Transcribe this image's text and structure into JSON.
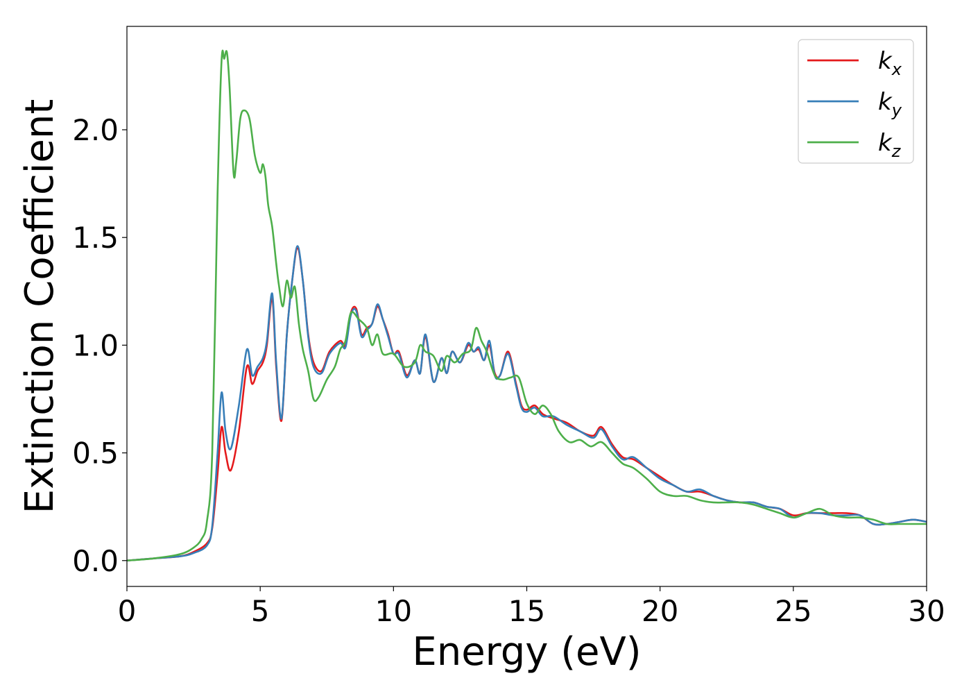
{
  "chart_data": {
    "type": "line",
    "title": "",
    "xlabel": "Energy (eV)",
    "ylabel": "Extinction Coefficient",
    "xlim": [
      0,
      30
    ],
    "ylim": [
      -0.12,
      2.48
    ],
    "xticks": [
      0,
      5,
      10,
      15,
      20,
      25,
      30
    ],
    "xtick_labels": [
      "0",
      "5",
      "10",
      "15",
      "20",
      "25",
      "30"
    ],
    "yticks": [
      0.0,
      0.5,
      1.0,
      1.5,
      2.0
    ],
    "ytick_labels": [
      "0.0",
      "0.5",
      "1.0",
      "1.5",
      "2.0"
    ],
    "grid": false,
    "legend_position": "top-right",
    "series": [
      {
        "name": "kx",
        "label_base": "k",
        "label_sub": "x",
        "color": "#e41a1c",
        "x": [
          0,
          1,
          2,
          2.5,
          3,
          3.2,
          3.4,
          3.55,
          3.7,
          3.9,
          4.2,
          4.5,
          4.7,
          4.9,
          5.1,
          5.25,
          5.45,
          5.6,
          5.8,
          6.0,
          6.2,
          6.4,
          6.6,
          6.8,
          7.0,
          7.3,
          7.6,
          8.0,
          8.2,
          8.4,
          8.6,
          8.8,
          9.0,
          9.2,
          9.4,
          9.6,
          9.8,
          10.0,
          10.2,
          10.5,
          10.8,
          11.0,
          11.2,
          11.5,
          11.8,
          12.0,
          12.2,
          12.5,
          12.8,
          13.0,
          13.2,
          13.4,
          13.6,
          13.8,
          14.0,
          14.3,
          14.6,
          14.8,
          15.0,
          15.3,
          15.6,
          16.0,
          16.5,
          17.0,
          17.5,
          17.8,
          18.2,
          18.6,
          19.0,
          19.5,
          20.0,
          20.5,
          21.0,
          21.5,
          22.0,
          22.5,
          23.0,
          23.5,
          24.0,
          24.5,
          25.0,
          25.5,
          26.0,
          26.5,
          27.0,
          27.5,
          28.0,
          28.5,
          29.0,
          29.5,
          30.0
        ],
        "values": [
          0.0,
          0.01,
          0.02,
          0.04,
          0.08,
          0.15,
          0.4,
          0.62,
          0.5,
          0.42,
          0.6,
          0.9,
          0.82,
          0.88,
          0.92,
          1.0,
          1.22,
          0.9,
          0.65,
          1.05,
          1.3,
          1.45,
          1.3,
          1.05,
          0.92,
          0.88,
          0.97,
          1.02,
          1.0,
          1.15,
          1.17,
          1.05,
          1.08,
          1.1,
          1.18,
          1.12,
          1.05,
          0.96,
          0.97,
          0.86,
          0.93,
          0.87,
          1.04,
          0.83,
          0.94,
          0.87,
          0.97,
          0.92,
          1.0,
          0.97,
          0.98,
          0.93,
          1.0,
          0.87,
          0.86,
          0.97,
          0.82,
          0.72,
          0.7,
          0.72,
          0.68,
          0.66,
          0.64,
          0.6,
          0.58,
          0.62,
          0.54,
          0.48,
          0.47,
          0.43,
          0.39,
          0.35,
          0.32,
          0.32,
          0.3,
          0.28,
          0.27,
          0.27,
          0.25,
          0.24,
          0.21,
          0.22,
          0.22,
          0.22,
          0.22,
          0.21,
          0.17,
          0.17,
          0.18,
          0.19,
          0.18
        ]
      },
      {
        "name": "ky",
        "label_base": "k",
        "label_sub": "y",
        "color": "#377eb8",
        "x": [
          0,
          1,
          2,
          2.5,
          3,
          3.2,
          3.4,
          3.55,
          3.7,
          3.9,
          4.2,
          4.5,
          4.7,
          4.9,
          5.1,
          5.25,
          5.45,
          5.6,
          5.8,
          6.0,
          6.2,
          6.4,
          6.6,
          6.8,
          7.0,
          7.3,
          7.6,
          8.0,
          8.2,
          8.4,
          8.6,
          8.8,
          9.0,
          9.2,
          9.4,
          9.6,
          9.8,
          10.0,
          10.2,
          10.5,
          10.8,
          11.0,
          11.2,
          11.5,
          11.8,
          12.0,
          12.2,
          12.5,
          12.8,
          13.0,
          13.2,
          13.4,
          13.6,
          13.8,
          14.0,
          14.3,
          14.6,
          14.8,
          15.0,
          15.3,
          15.6,
          16.0,
          16.5,
          17.0,
          17.5,
          17.8,
          18.2,
          18.6,
          19.0,
          19.5,
          20.0,
          20.5,
          21.0,
          21.5,
          22.0,
          22.5,
          23.0,
          23.5,
          24.0,
          24.5,
          25.0,
          25.5,
          26.0,
          26.5,
          27.0,
          27.5,
          28.0,
          28.5,
          29.0,
          29.5,
          30.0
        ],
        "values": [
          0.0,
          0.01,
          0.02,
          0.035,
          0.07,
          0.16,
          0.5,
          0.78,
          0.6,
          0.52,
          0.72,
          0.98,
          0.86,
          0.9,
          0.94,
          1.02,
          1.24,
          0.92,
          0.66,
          1.05,
          1.3,
          1.46,
          1.3,
          1.04,
          0.9,
          0.87,
          0.96,
          1.01,
          0.99,
          1.14,
          1.16,
          1.04,
          1.07,
          1.1,
          1.19,
          1.12,
          1.04,
          0.96,
          0.96,
          0.85,
          0.93,
          0.87,
          1.05,
          0.83,
          0.94,
          0.87,
          0.97,
          0.92,
          1.01,
          0.97,
          0.99,
          0.93,
          1.02,
          0.86,
          0.86,
          0.96,
          0.81,
          0.71,
          0.69,
          0.71,
          0.67,
          0.67,
          0.63,
          0.6,
          0.57,
          0.61,
          0.53,
          0.47,
          0.48,
          0.43,
          0.38,
          0.35,
          0.32,
          0.33,
          0.3,
          0.28,
          0.27,
          0.27,
          0.25,
          0.24,
          0.2,
          0.22,
          0.22,
          0.21,
          0.21,
          0.21,
          0.17,
          0.17,
          0.18,
          0.19,
          0.18
        ]
      },
      {
        "name": "kz",
        "label_base": "k",
        "label_sub": "z",
        "color": "#4daf4a",
        "x": [
          0,
          1,
          2,
          2.5,
          2.8,
          3.0,
          3.2,
          3.4,
          3.55,
          3.65,
          3.75,
          3.85,
          4.0,
          4.1,
          4.25,
          4.4,
          4.6,
          4.8,
          5.0,
          5.1,
          5.2,
          5.3,
          5.45,
          5.6,
          5.7,
          5.85,
          6.0,
          6.15,
          6.3,
          6.45,
          6.6,
          6.8,
          7.0,
          7.2,
          7.5,
          7.8,
          8.0,
          8.2,
          8.4,
          8.7,
          9.0,
          9.2,
          9.4,
          9.6,
          10.0,
          10.4,
          10.8,
          11.0,
          11.2,
          11.5,
          11.8,
          12.0,
          12.3,
          12.6,
          12.9,
          13.1,
          13.3,
          13.5,
          13.8,
          14.1,
          14.4,
          14.7,
          15.0,
          15.3,
          15.6,
          15.9,
          16.2,
          16.6,
          17.0,
          17.4,
          17.8,
          18.2,
          18.6,
          19.0,
          19.5,
          20.0,
          20.5,
          21.0,
          21.5,
          22.0,
          22.5,
          23.0,
          23.5,
          24.0,
          24.5,
          25.0,
          25.5,
          26.0,
          26.5,
          27.0,
          27.5,
          28.0,
          28.5,
          29.0,
          29.5,
          30.0
        ],
        "values": [
          0.0,
          0.01,
          0.03,
          0.06,
          0.1,
          0.18,
          0.5,
          1.7,
          2.32,
          2.33,
          2.36,
          2.2,
          1.8,
          1.85,
          2.05,
          2.09,
          2.05,
          1.88,
          1.8,
          1.84,
          1.78,
          1.65,
          1.55,
          1.38,
          1.28,
          1.18,
          1.3,
          1.22,
          1.27,
          1.1,
          0.98,
          0.88,
          0.75,
          0.76,
          0.84,
          0.9,
          0.98,
          1.02,
          1.15,
          1.12,
          1.08,
          1.0,
          1.05,
          0.96,
          0.96,
          0.9,
          0.92,
          1.0,
          0.97,
          0.95,
          0.88,
          0.95,
          0.92,
          0.96,
          0.98,
          1.08,
          1.02,
          0.97,
          0.86,
          0.84,
          0.85,
          0.85,
          0.73,
          0.68,
          0.72,
          0.68,
          0.6,
          0.55,
          0.56,
          0.53,
          0.55,
          0.5,
          0.45,
          0.43,
          0.38,
          0.32,
          0.3,
          0.3,
          0.28,
          0.27,
          0.27,
          0.27,
          0.26,
          0.24,
          0.22,
          0.2,
          0.22,
          0.24,
          0.21,
          0.2,
          0.2,
          0.19,
          0.17,
          0.17,
          0.17,
          0.17
        ]
      }
    ]
  }
}
